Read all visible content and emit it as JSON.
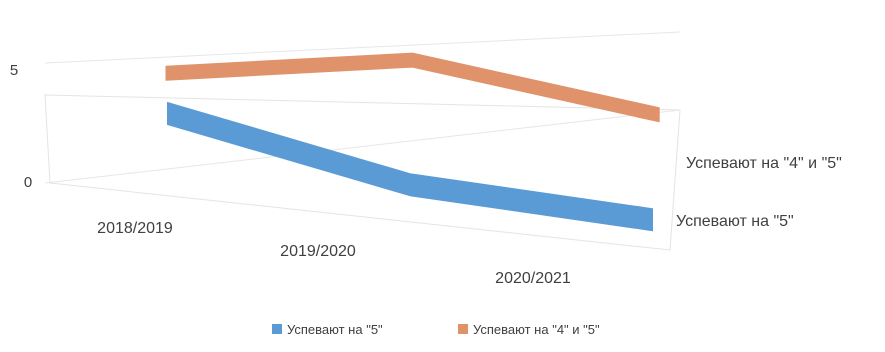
{
  "chart_data": {
    "type": "line",
    "subtype": "3d-ribbon",
    "categories": [
      "2018/2019",
      "2019/2020",
      "2020/2021"
    ],
    "series": [
      {
        "name": "Успевают на \"5\"",
        "color": "#5b9bd5",
        "values": [
          3.6,
          1.5,
          1.0
        ]
      },
      {
        "name": "Успевают на \"4\" и \"5\"",
        "color": "#e0936a",
        "values": [
          2.4,
          3.5,
          1.3
        ]
      }
    ],
    "y_ticks": [
      "0",
      "5"
    ],
    "ylim": [
      0,
      5
    ],
    "grid": true,
    "legend_position": "bottom",
    "title": "",
    "xlabel": "",
    "ylabel": ""
  }
}
